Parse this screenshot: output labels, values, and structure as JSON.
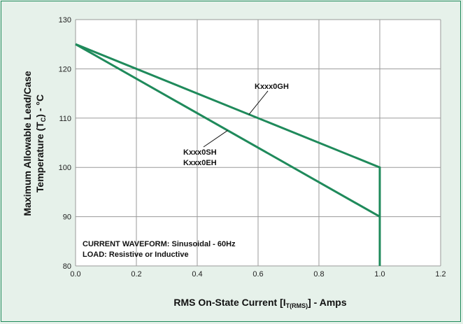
{
  "chart_data": {
    "type": "line",
    "xlabel": {
      "main": "RMS On-State Current [I",
      "sub": "T(RMS)",
      "tail": "] - Amps"
    },
    "ylabel": {
      "line1": "Maximum Allowable Lead/Case",
      "line2_main": "Temperature (T",
      "line2_sub": "C",
      "line2_tail": ") - °C"
    },
    "xlim": [
      0.0,
      1.2
    ],
    "ylim": [
      80,
      130
    ],
    "x_ticks": [
      "0.0",
      "0.2",
      "0.4",
      "0.6",
      "0.8",
      "1.0",
      "1.2"
    ],
    "y_ticks": [
      "80",
      "90",
      "100",
      "110",
      "120",
      "130"
    ],
    "grid": true,
    "series": [
      {
        "name": "Kxxx0GH",
        "x": [
          0.0,
          1.0,
          1.0
        ],
        "y": [
          125,
          100,
          80
        ]
      },
      {
        "name": "Kxxx0SH / Kxxx0EH",
        "x": [
          0.0,
          1.0
        ],
        "y": [
          125,
          90
        ]
      }
    ],
    "annotations": {
      "series_label_1": "Kxxx0GH",
      "series_label_2a": "Kxxx0SH",
      "series_label_2b": "Kxxx0EH",
      "note_line1": "CURRENT WAVEFORM: Sinusoidal - 60Hz",
      "note_line2": "LOAD: Resistive or Inductive"
    },
    "colors": {
      "line": "#1f8a5b",
      "grid": "#9a9a9a",
      "background": "#e6f1ea",
      "plot_bg": "#ffffff"
    }
  }
}
